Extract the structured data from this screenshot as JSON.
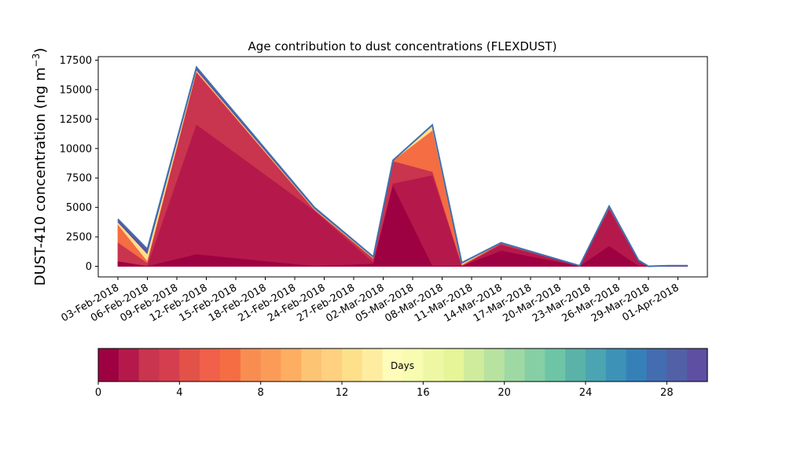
{
  "chart_data": {
    "type": "area",
    "title": "Age contribution to dust concentrations (FLEXDUST)",
    "ylabel_main": "DUST-410 concentration (ng m",
    "ylabel_exp": "−3",
    "ylabel_close": ")",
    "ylim": [
      -900,
      17800
    ],
    "xlim": [
      "2018-02-01",
      "2018-04-04"
    ],
    "y_ticks": [
      0,
      2500,
      5000,
      7500,
      10000,
      12500,
      15000,
      17500
    ],
    "x_ticks": [
      {
        "date": "2018-02-03",
        "label": "03-Feb-2018"
      },
      {
        "date": "2018-02-06",
        "label": "06-Feb-2018"
      },
      {
        "date": "2018-02-09",
        "label": "09-Feb-2018"
      },
      {
        "date": "2018-02-12",
        "label": "12-Feb-2018"
      },
      {
        "date": "2018-02-15",
        "label": "15-Feb-2018"
      },
      {
        "date": "2018-02-18",
        "label": "18-Feb-2018"
      },
      {
        "date": "2018-02-21",
        "label": "21-Feb-2018"
      },
      {
        "date": "2018-02-24",
        "label": "24-Feb-2018"
      },
      {
        "date": "2018-02-27",
        "label": "27-Feb-2018"
      },
      {
        "date": "2018-03-02",
        "label": "02-Mar-2018"
      },
      {
        "date": "2018-03-05",
        "label": "05-Mar-2018"
      },
      {
        "date": "2018-03-08",
        "label": "08-Mar-2018"
      },
      {
        "date": "2018-03-11",
        "label": "11-Mar-2018"
      },
      {
        "date": "2018-03-14",
        "label": "14-Mar-2018"
      },
      {
        "date": "2018-03-17",
        "label": "17-Mar-2018"
      },
      {
        "date": "2018-03-20",
        "label": "20-Mar-2018"
      },
      {
        "date": "2018-03-23",
        "label": "23-Mar-2018"
      },
      {
        "date": "2018-03-26",
        "label": "26-Mar-2018"
      },
      {
        "date": "2018-03-29",
        "label": "29-Mar-2018"
      },
      {
        "date": "2018-04-01",
        "label": "01-Apr-2018"
      }
    ],
    "x": [
      "2018-02-03",
      "2018-02-06",
      "2018-02-11",
      "2018-02-23",
      "2018-03-01",
      "2018-03-03",
      "2018-03-07",
      "2018-03-10",
      "2018-03-14",
      "2018-03-22",
      "2018-03-25",
      "2018-03-28",
      "2018-03-29",
      "2018-03-31",
      "2018-04-02"
    ],
    "total": [
      4000,
      1450,
      16900,
      5000,
      800,
      9000,
      12000,
      300,
      2000,
      50,
      5100,
      500,
      0,
      50,
      50
    ],
    "series": [
      {
        "values": [
          400,
          0,
          1000,
          0,
          200,
          6800,
          0,
          0,
          1300,
          0,
          1700,
          0,
          0,
          0,
          0
        ]
      },
      {
        "values": [
          400,
          0,
          12000,
          4700,
          300,
          7000,
          7700,
          0,
          1800,
          0,
          4800,
          400,
          0,
          0,
          0
        ]
      },
      {
        "values": [
          2000,
          250,
          16400,
          4750,
          600,
          8900,
          8000,
          0,
          1900,
          0,
          4900,
          400,
          0,
          0,
          0
        ]
      },
      {
        "values": [
          3500,
          400,
          16500,
          4800,
          650,
          8950,
          11500,
          100,
          1950,
          0,
          5000,
          450,
          0,
          20,
          20
        ]
      },
      {
        "values": [
          3700,
          1000,
          16600,
          4850,
          700,
          9000,
          11900,
          200,
          1980,
          20,
          5050,
          480,
          0,
          40,
          40
        ]
      },
      {
        "values": [
          3950,
          1400,
          16850,
          4980,
          780,
          9000,
          11990,
          290,
          2000,
          45,
          5100,
          500,
          0,
          50,
          50
        ]
      }
    ],
    "series_colors": [
      "#9e0142",
      "#b5194b",
      "#c9344e",
      "#f46d43",
      "#fee08b",
      "#5e4fa2"
    ],
    "colorbar": {
      "label": "Days",
      "min": 0,
      "max": 30,
      "ticks": [
        0,
        4,
        8,
        12,
        16,
        20,
        24,
        28
      ],
      "colors": [
        "#9e0142",
        "#b5194b",
        "#c9344e",
        "#d53e4f",
        "#e25249",
        "#f0604a",
        "#f46d43",
        "#f88d52",
        "#fa9c58",
        "#fdae61",
        "#fdc473",
        "#fed080",
        "#fee08b",
        "#feeda1",
        "#fffbb8",
        "#f7fcb0",
        "#eef8a4",
        "#e6f598",
        "#cfec9d",
        "#b8e2a0",
        "#9ed9a3",
        "#86cfa5",
        "#6ec5a6",
        "#5bb2a9",
        "#4ba4b1",
        "#3d92b8",
        "#3680b8",
        "#436db0",
        "#5260a6",
        "#5e4fa2"
      ]
    },
    "grid": false
  }
}
